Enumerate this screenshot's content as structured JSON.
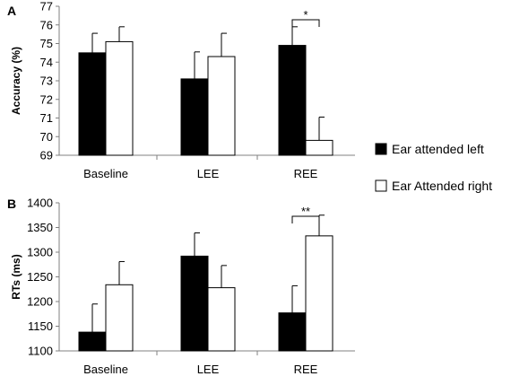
{
  "legend": {
    "placement": "right",
    "entries": [
      {
        "label": "Ear attended left",
        "color": "#000000"
      },
      {
        "label": "Ear Attended right",
        "color": "#ffffff"
      }
    ]
  },
  "chart_data": [
    {
      "type": "bar",
      "panel": "A",
      "categories": [
        "Baseline",
        "LEE",
        "REE"
      ],
      "series": [
        {
          "name": "Ear attended left",
          "color": "#000000",
          "values": [
            74.5,
            73.1,
            74.9
          ],
          "errors": [
            1.05,
            1.45,
            1.0
          ]
        },
        {
          "name": "Ear Attended right",
          "color": "#ffffff",
          "values": [
            75.1,
            74.3,
            69.8
          ],
          "errors": [
            0.8,
            1.25,
            1.25
          ]
        }
      ],
      "ylabel": "Accuracy (%)",
      "xlabel": "",
      "ylim": [
        69,
        77
      ],
      "yticks": [
        69,
        70,
        71,
        72,
        73,
        74,
        75,
        76,
        77
      ],
      "grid": false,
      "significance": [
        {
          "category": "REE",
          "label": "*"
        }
      ]
    },
    {
      "type": "bar",
      "panel": "B",
      "categories": [
        "Baseline",
        "LEE",
        "REE"
      ],
      "series": [
        {
          "name": "Ear attended left",
          "color": "#000000",
          "values": [
            1138,
            1292,
            1177
          ],
          "errors": [
            57,
            47,
            55
          ]
        },
        {
          "name": "Ear Attended right",
          "color": "#ffffff",
          "values": [
            1234,
            1228,
            1333
          ],
          "errors": [
            47,
            45,
            42
          ]
        }
      ],
      "ylabel": "RTs (ms)",
      "xlabel": "",
      "ylim": [
        1100,
        1400
      ],
      "yticks": [
        1100,
        1150,
        1200,
        1250,
        1300,
        1350,
        1400
      ],
      "grid": false,
      "significance": [
        {
          "category": "REE",
          "label": "**"
        }
      ]
    }
  ]
}
